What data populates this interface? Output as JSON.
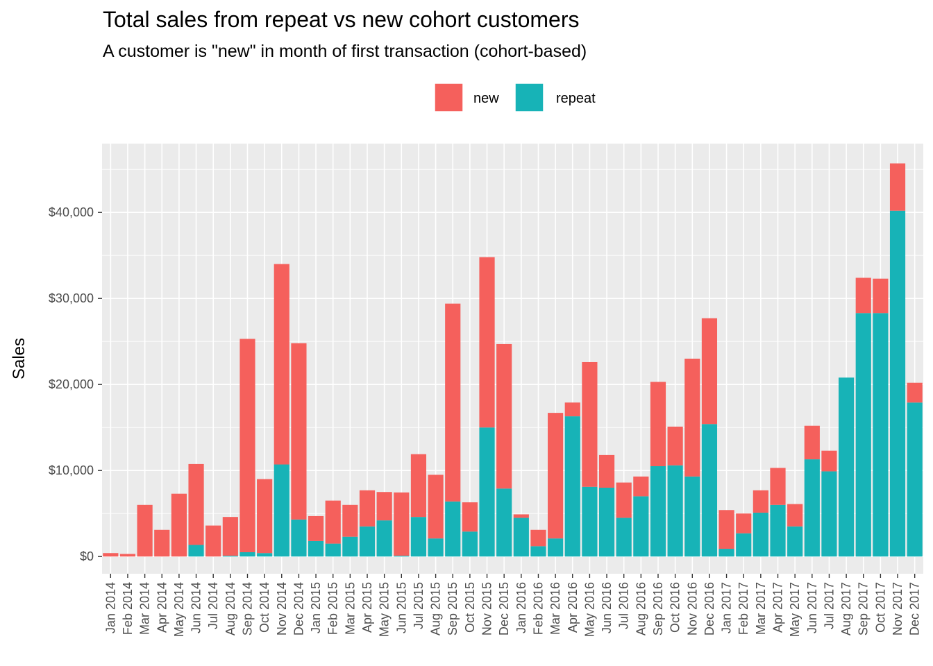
{
  "chart_data": {
    "type": "bar",
    "stacked": true,
    "title": "Total sales from repeat vs new cohort customers",
    "subtitle": "A customer is \"new\" in month of first transaction (cohort-based)",
    "xlabel": "",
    "ylabel": "Sales",
    "ylim": [
      -2000,
      48000
    ],
    "yticks": [
      0,
      10000,
      20000,
      30000,
      40000
    ],
    "ytick_labels": [
      "$0",
      "$10,000",
      "$20,000",
      "$30,000",
      "$40,000"
    ],
    "grid": true,
    "legend_position": "top",
    "categories": [
      "Jan 2014",
      "Feb 2014",
      "Mar 2014",
      "Apr 2014",
      "May 2014",
      "Jun 2014",
      "Jul 2014",
      "Aug 2014",
      "Sep 2014",
      "Oct 2014",
      "Nov 2014",
      "Dec 2014",
      "Jan 2015",
      "Feb 2015",
      "Mar 2015",
      "Apr 2015",
      "May 2015",
      "Jun 2015",
      "Jul 2015",
      "Aug 2015",
      "Sep 2015",
      "Oct 2015",
      "Nov 2015",
      "Dec 2015",
      "Jan 2016",
      "Feb 2016",
      "Mar 2016",
      "Apr 2016",
      "May 2016",
      "Jun 2016",
      "Jul 2016",
      "Aug 2016",
      "Sep 2016",
      "Oct 2016",
      "Nov 2016",
      "Dec 2016",
      "Jan 2017",
      "Feb 2017",
      "Mar 2017",
      "Apr 2017",
      "May 2017",
      "Jun 2017",
      "Jul 2017",
      "Aug 2017",
      "Sep 2017",
      "Oct 2017",
      "Nov 2017",
      "Dec 2017"
    ],
    "series": [
      {
        "name": "repeat",
        "color": "#17b3b7",
        "values": [
          0,
          0,
          0,
          0,
          0,
          1350,
          0,
          100,
          500,
          400,
          10700,
          4300,
          1800,
          1500,
          2300,
          3500,
          4200,
          100,
          4600,
          2100,
          6400,
          2900,
          15000,
          7900,
          4500,
          1200,
          2100,
          16300,
          8100,
          8000,
          4500,
          7000,
          10500,
          10600,
          9300,
          15400,
          900,
          2700,
          5100,
          6000,
          3500,
          11300,
          9900,
          20800,
          28300,
          28300,
          40200,
          17900
        ]
      },
      {
        "name": "new",
        "color": "#f5605c",
        "values": [
          400,
          300,
          6000,
          3100,
          7300,
          9400,
          3600,
          4500,
          24800,
          8600,
          23300,
          20500,
          2900,
          5000,
          3700,
          4200,
          3300,
          7350,
          7300,
          7400,
          23000,
          3400,
          19800,
          16800,
          400,
          1900,
          14600,
          1600,
          14500,
          3800,
          4100,
          2300,
          9800,
          4500,
          13700,
          12300,
          4500,
          2300,
          2600,
          4300,
          2600,
          3900,
          2400,
          0,
          4100,
          4000,
          5500,
          2300
        ]
      }
    ]
  }
}
